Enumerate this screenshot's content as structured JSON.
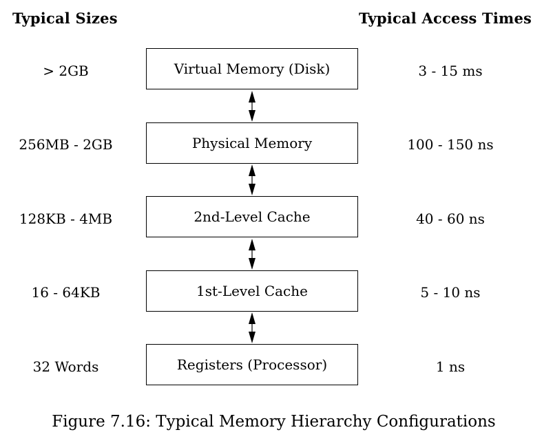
{
  "headings": {
    "sizes": "Typical Sizes",
    "access_times": "Typical Access Times"
  },
  "levels": [
    {
      "name": "Virtual Memory (Disk)",
      "size": "> 2GB",
      "access_time": "3 - 15 ms"
    },
    {
      "name": "Physical Memory",
      "size": "256MB - 2GB",
      "access_time": "100 - 150 ns"
    },
    {
      "name": "2nd-Level Cache",
      "size": "128KB - 4MB",
      "access_time": "40 - 60 ns"
    },
    {
      "name": "1st-Level Cache",
      "size": "16 - 64KB",
      "access_time": "5 - 10 ns"
    },
    {
      "name": "Registers (Processor)",
      "size": "32 Words",
      "access_time": "1 ns"
    }
  ],
  "caption": "Figure 7.16: Typical Memory Hierarchy Configurations"
}
